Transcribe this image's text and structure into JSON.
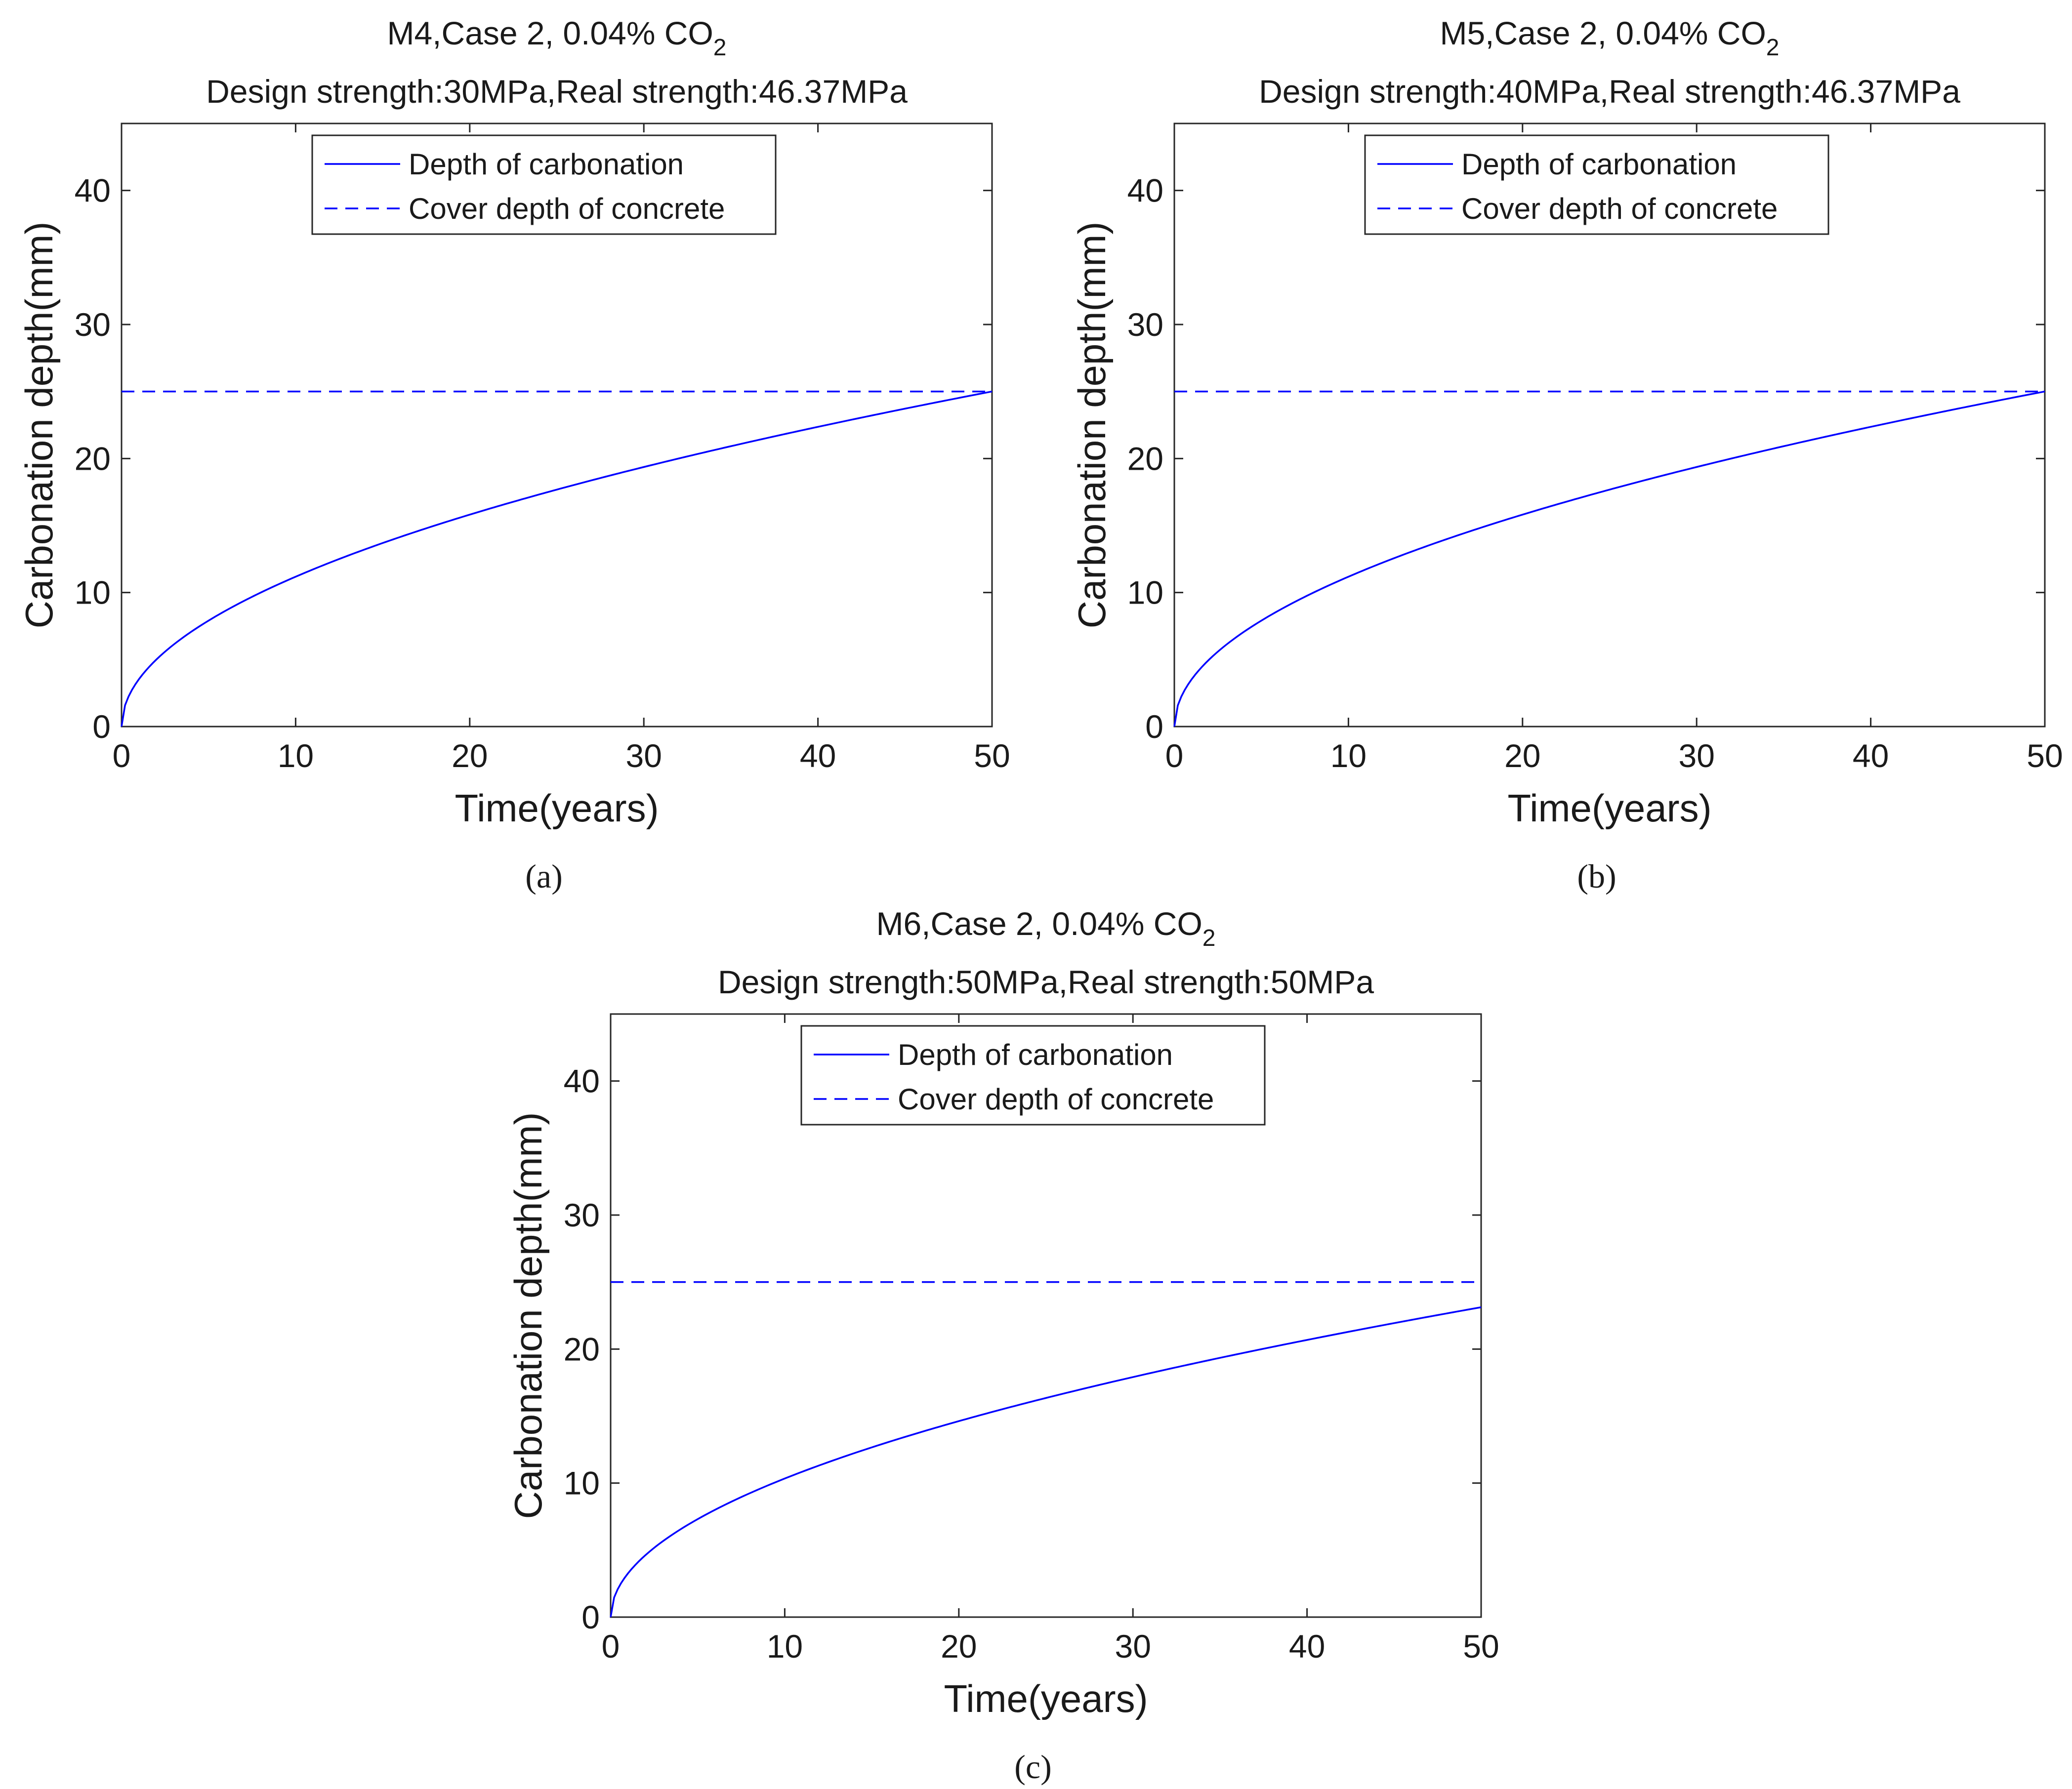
{
  "chart_data": [
    {
      "type": "line",
      "panel_label": "(a)",
      "title_line1": "M4,Case 2, 0.04% CO",
      "title_subscript": "2",
      "title_line2": "Design strength:30MPa,Real strength:46.37MPa",
      "xlabel": "Time(years)",
      "ylabel": "Carbonation depth(mm)",
      "xlim": [
        0,
        50
      ],
      "ylim": [
        0,
        45
      ],
      "xticks": [
        0,
        10,
        20,
        30,
        40,
        50
      ],
      "yticks": [
        0,
        10,
        20,
        30,
        40
      ],
      "legend_position": "top-center",
      "series": [
        {
          "name": "Depth of carbonation",
          "style": "solid",
          "color": "#0000ff",
          "model": "sqrt",
          "k": 3.536,
          "end_value": 25.0
        },
        {
          "name": "Cover depth of concrete",
          "style": "dashed",
          "color": "#0000ff",
          "constant": 25
        }
      ]
    },
    {
      "type": "line",
      "panel_label": "(b)",
      "title_line1": "M5,Case 2, 0.04% CO",
      "title_subscript": "2",
      "title_line2": "Design strength:40MPa,Real strength:46.37MPa",
      "xlabel": "Time(years)",
      "ylabel": "Carbonation depth(mm)",
      "xlim": [
        0,
        50
      ],
      "ylim": [
        0,
        45
      ],
      "xticks": [
        0,
        10,
        20,
        30,
        40,
        50
      ],
      "yticks": [
        0,
        10,
        20,
        30,
        40
      ],
      "legend_position": "top-center",
      "series": [
        {
          "name": "Depth of carbonation",
          "style": "solid",
          "color": "#0000ff",
          "model": "sqrt",
          "k": 3.536,
          "end_value": 25.0
        },
        {
          "name": "Cover depth of concrete",
          "style": "dashed",
          "color": "#0000ff",
          "constant": 25
        }
      ]
    },
    {
      "type": "line",
      "panel_label": "(c)",
      "title_line1": "M6,Case 2, 0.04% CO",
      "title_subscript": "2",
      "title_line2": "Design strength:50MPa,Real strength:50MPa",
      "xlabel": "Time(years)",
      "ylabel": "Carbonation depth(mm)",
      "xlim": [
        0,
        50
      ],
      "ylim": [
        0,
        45
      ],
      "xticks": [
        0,
        10,
        20,
        30,
        40,
        50
      ],
      "yticks": [
        0,
        10,
        20,
        30,
        40
      ],
      "legend_position": "top-center",
      "series": [
        {
          "name": "Depth of carbonation",
          "style": "solid",
          "color": "#0000ff",
          "model": "sqrt",
          "k": 3.27,
          "end_value": 23.1
        },
        {
          "name": "Cover depth of concrete",
          "style": "dashed",
          "color": "#0000ff",
          "constant": 25
        }
      ]
    }
  ]
}
